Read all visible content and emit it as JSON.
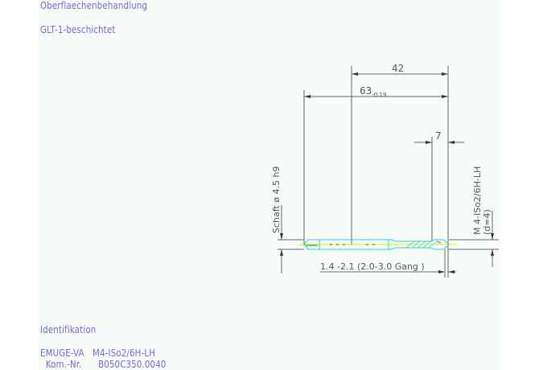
{
  "notes": {
    "surface_label": "Oberflaechenbehandlung",
    "surface_value": "GLT-1-beschichtet",
    "ident_label": "Identifikation",
    "ident_line1": "EMUGE-VA   M4-ISo2/6H-LH",
    "ident_line2": "  Kom.-Nr.      B050C350.0040"
  },
  "drawing": {
    "dim_thread_length": "42",
    "dim_total_length": "63",
    "dim_total_tolerance": "-0.19",
    "dim_chamfer": "7",
    "shank_label": "Schaft ø 4.5  h9",
    "thread_label": "M 4-ISo2/6H-LH",
    "thread_d": "(d=4)",
    "chamfer_note": "1.4 -2.1 (2.0-3.0 Gang  )"
  },
  "colors": {
    "text": "#6a6af0",
    "dim_lines": "#555555",
    "tool_outline": "#22d0e0",
    "centerline": "#e8e800"
  }
}
